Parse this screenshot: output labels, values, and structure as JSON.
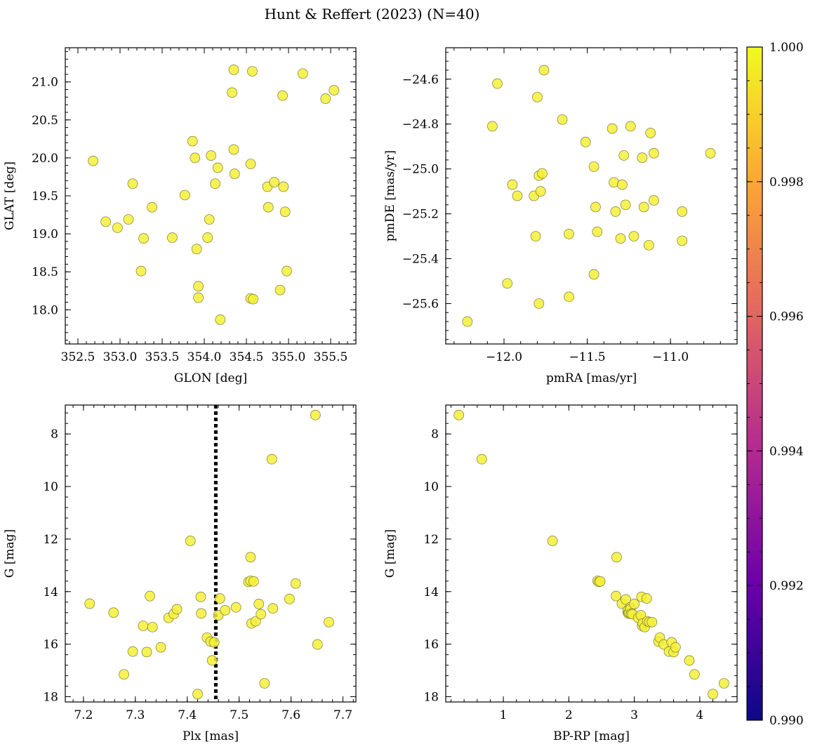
{
  "figure": {
    "title": "Hunt & Reffert (2023) (N=40)"
  },
  "colors": {
    "point_fill": "#f4f037",
    "dash_line": "#000000"
  },
  "chart_data": [
    {
      "id": "glon-glat",
      "type": "scatter",
      "xlabel": "GLON [deg]",
      "ylabel": "GLAT [deg]",
      "xlim": [
        352.35,
        355.8
      ],
      "ylim": [
        17.55,
        21.45
      ],
      "xticks": [
        352.5,
        353.0,
        353.5,
        354.0,
        354.5,
        355.0,
        355.5
      ],
      "xtick_labels": [
        "352.5",
        "353.0",
        "353.5",
        "354.0",
        "354.5",
        "355.0",
        "355.5"
      ],
      "yticks": [
        18.0,
        18.5,
        19.0,
        19.5,
        20.0,
        20.5,
        21.0
      ],
      "ytick_labels": [
        "18.0",
        "18.5",
        "19.0",
        "19.5",
        "20.0",
        "20.5",
        "21.0"
      ],
      "x": [
        352.68,
        352.83,
        352.97,
        353.1,
        353.15,
        353.25,
        353.28,
        353.38,
        353.62,
        353.77,
        353.86,
        353.89,
        353.91,
        353.93,
        353.93,
        354.04,
        354.06,
        354.08,
        354.13,
        354.16,
        354.19,
        354.33,
        354.35,
        354.35,
        354.36,
        354.55,
        354.55,
        354.57,
        354.58,
        354.75,
        354.76,
        354.83,
        354.9,
        354.93,
        354.94,
        354.96,
        354.98,
        355.17,
        355.44,
        355.54
      ],
      "y": [
        19.96,
        19.16,
        19.08,
        19.19,
        19.66,
        18.51,
        18.94,
        19.35,
        18.95,
        19.51,
        20.22,
        20.0,
        18.8,
        18.16,
        18.31,
        18.95,
        19.19,
        20.03,
        19.66,
        19.87,
        17.87,
        20.86,
        21.16,
        20.11,
        19.79,
        18.15,
        19.92,
        21.14,
        18.14,
        19.62,
        19.35,
        19.68,
        18.26,
        20.82,
        19.62,
        19.29,
        18.51,
        21.11,
        20.78,
        20.89
      ],
      "color_values": [
        1,
        1,
        1,
        1,
        1,
        1,
        1,
        1,
        1,
        1,
        1,
        1,
        1,
        1,
        1,
        1,
        1,
        1,
        1,
        1,
        1,
        1,
        1,
        1,
        1,
        1,
        1,
        1,
        1,
        1,
        1,
        1,
        1,
        1,
        1,
        1,
        1,
        1,
        1,
        1
      ]
    },
    {
      "id": "pm",
      "type": "scatter",
      "xlabel": "pmRA [mas/yr]",
      "ylabel": "pmDE [mas/yr]",
      "xlim": [
        -12.35,
        -10.6
      ],
      "ylim": [
        -25.78,
        -24.46
      ],
      "xticks": [
        -12.0,
        -11.5,
        -11.0
      ],
      "xtick_labels": [
        "−12.0",
        "−11.5",
        "−11.0"
      ],
      "yticks": [
        -25.6,
        -25.4,
        -25.2,
        -25.0,
        -24.8,
        -24.6
      ],
      "ytick_labels": [
        "−25.6",
        "−25.4",
        "−25.2",
        "−25.0",
        "−24.8",
        "−24.6"
      ],
      "x": [
        -12.22,
        -12.07,
        -12.04,
        -11.98,
        -11.95,
        -11.92,
        -11.82,
        -11.81,
        -11.8,
        -11.79,
        -11.79,
        -11.78,
        -11.77,
        -11.76,
        -11.65,
        -11.61,
        -11.61,
        -11.51,
        -11.46,
        -11.46,
        -11.45,
        -11.44,
        -11.35,
        -11.34,
        -11.33,
        -11.3,
        -11.29,
        -11.28,
        -11.27,
        -11.24,
        -11.22,
        -11.17,
        -11.16,
        -11.13,
        -11.12,
        -11.1,
        -11.1,
        -10.93,
        -10.93,
        -10.76
      ],
      "y": [
        -25.68,
        -24.81,
        -24.62,
        -25.51,
        -25.07,
        -25.12,
        -25.12,
        -25.3,
        -24.68,
        -25.03,
        -25.6,
        -25.1,
        -25.02,
        -24.56,
        -24.78,
        -25.57,
        -25.29,
        -24.88,
        -24.99,
        -25.47,
        -25.17,
        -25.28,
        -24.82,
        -25.06,
        -25.19,
        -25.31,
        -25.07,
        -24.94,
        -25.16,
        -24.81,
        -25.3,
        -24.95,
        -25.17,
        -25.34,
        -24.84,
        -25.14,
        -24.93,
        -25.32,
        -25.19,
        -24.93
      ],
      "color_values": [
        1,
        1,
        1,
        1,
        1,
        1,
        1,
        1,
        1,
        1,
        1,
        1,
        1,
        1,
        1,
        1,
        1,
        1,
        1,
        1,
        1,
        1,
        1,
        1,
        1,
        1,
        1,
        1,
        1,
        1,
        1,
        1,
        1,
        1,
        1,
        1,
        1,
        1,
        1,
        1
      ]
    },
    {
      "id": "plx-g",
      "type": "scatter",
      "xlabel": "Plx [mas]",
      "ylabel": "G [mag]",
      "xlim": [
        7.165,
        7.725
      ],
      "ylim": [
        18.2,
        6.9
      ],
      "y_inverted": true,
      "xticks": [
        7.2,
        7.3,
        7.4,
        7.5,
        7.6,
        7.7
      ],
      "xtick_labels": [
        "7.2",
        "7.3",
        "7.4",
        "7.5",
        "7.6",
        "7.7"
      ],
      "yticks": [
        8,
        10,
        12,
        14,
        16,
        18
      ],
      "ytick_labels": [
        "8",
        "10",
        "12",
        "14",
        "16",
        "18"
      ],
      "vline": 7.455,
      "x": [
        7.212,
        7.258,
        7.278,
        7.295,
        7.315,
        7.322,
        7.328,
        7.333,
        7.349,
        7.364,
        7.374,
        7.38,
        7.406,
        7.42,
        7.426,
        7.427,
        7.438,
        7.445,
        7.448,
        7.452,
        7.46,
        7.463,
        7.473,
        7.494,
        7.518,
        7.522,
        7.522,
        7.524,
        7.528,
        7.532,
        7.538,
        7.542,
        7.549,
        7.563,
        7.565,
        7.597,
        7.609,
        7.647,
        7.651,
        7.673
      ],
      "y": [
        14.46,
        14.8,
        17.15,
        16.28,
        15.3,
        16.3,
        14.17,
        15.35,
        16.12,
        15.0,
        14.85,
        14.67,
        12.07,
        17.9,
        14.2,
        14.83,
        15.75,
        15.9,
        16.62,
        15.93,
        14.9,
        14.26,
        14.71,
        14.6,
        13.63,
        12.69,
        13.59,
        15.21,
        13.61,
        15.13,
        14.47,
        14.86,
        17.49,
        8.96,
        14.64,
        14.28,
        13.69,
        7.28,
        16.01,
        15.16
      ],
      "color_values": [
        1,
        1,
        1,
        1,
        1,
        1,
        1,
        1,
        1,
        1,
        1,
        1,
        1,
        1,
        1,
        1,
        1,
        1,
        1,
        1,
        1,
        1,
        1,
        1,
        1,
        1,
        1,
        1,
        1,
        1,
        1,
        1,
        1,
        1,
        1,
        1,
        1,
        1,
        1,
        1
      ]
    },
    {
      "id": "cmd",
      "type": "scatter",
      "xlabel": "BP-RP [mag]",
      "ylabel": "G [mag]",
      "xlim": [
        0.12,
        4.57
      ],
      "ylim": [
        18.2,
        6.9
      ],
      "y_inverted": true,
      "xticks": [
        1,
        2,
        3,
        4
      ],
      "xtick_labels": [
        "1",
        "2",
        "3",
        "4"
      ],
      "yticks": [
        8,
        10,
        12,
        14,
        16,
        18
      ],
      "ytick_labels": [
        "8",
        "10",
        "12",
        "14",
        "16",
        "18"
      ],
      "x": [
        0.32,
        0.67,
        1.75,
        2.44,
        2.46,
        2.48,
        2.72,
        2.73,
        2.81,
        2.87,
        2.9,
        2.9,
        2.91,
        2.92,
        2.94,
        2.94,
        2.95,
        2.97,
        3.0,
        3.06,
        3.1,
        3.11,
        3.12,
        3.13,
        3.16,
        3.19,
        3.2,
        3.23,
        3.27,
        3.37,
        3.39,
        3.45,
        3.53,
        3.57,
        3.6,
        3.63,
        3.84,
        3.92,
        4.2,
        4.37
      ],
      "y": [
        7.28,
        8.96,
        12.07,
        13.59,
        13.63,
        13.61,
        14.17,
        12.69,
        14.46,
        14.3,
        14.78,
        14.71,
        14.83,
        14.8,
        14.6,
        14.67,
        14.85,
        14.86,
        14.47,
        15.0,
        14.9,
        14.2,
        15.3,
        15.21,
        15.35,
        14.26,
        15.13,
        15.16,
        15.16,
        15.9,
        15.75,
        16.01,
        16.28,
        15.93,
        16.3,
        16.12,
        16.62,
        17.15,
        17.9,
        17.49
      ],
      "color_values": [
        1,
        1,
        1,
        1,
        1,
        1,
        1,
        1,
        1,
        1,
        1,
        1,
        1,
        1,
        1,
        1,
        1,
        1,
        1,
        1,
        1,
        1,
        1,
        1,
        1,
        1,
        1,
        1,
        1,
        1,
        1,
        1,
        1,
        1,
        1,
        1,
        1,
        1,
        1,
        1
      ]
    }
  ],
  "colorbar": {
    "colormap": "plasma",
    "range": [
      0.99,
      1.0
    ],
    "ticks": [
      0.99,
      0.992,
      0.994,
      0.996,
      0.998,
      1.0
    ],
    "tick_labels": [
      "0.990",
      "0.992",
      "0.994",
      "0.996",
      "0.998",
      "1.000"
    ],
    "gradient": [
      "#0d0887",
      "#6a00a8",
      "#b12a90",
      "#e16462",
      "#fca636",
      "#f0f921"
    ]
  }
}
